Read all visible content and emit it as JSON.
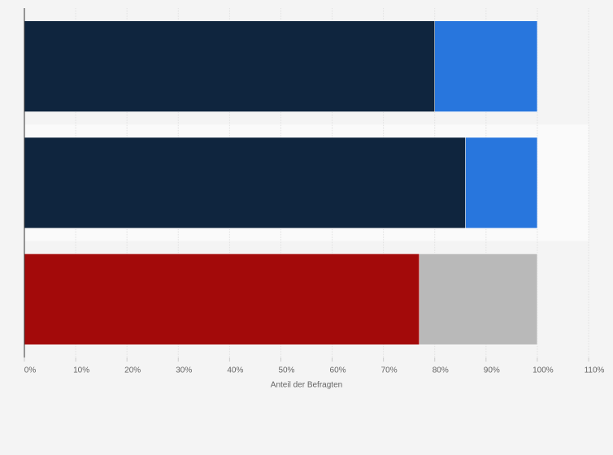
{
  "chart_data": {
    "type": "stacked-barh",
    "x_label": "Anteil der Befragten",
    "categories": [
      null,
      null,
      null
    ],
    "series": [
      {
        "colors": [
          "#0f253e",
          "#0f253e",
          "#a30a0a"
        ],
        "values": [
          80,
          86,
          77
        ]
      },
      {
        "colors": [
          "#2876dd",
          "#2876dd",
          "#b9b9b9"
        ],
        "values": [
          20,
          14,
          23
        ]
      }
    ],
    "xlim": [
      0,
      110
    ],
    "xticks": [
      {
        "value": 0,
        "label": "0%"
      },
      {
        "value": 10,
        "label": "10%"
      },
      {
        "value": 20,
        "label": "20%"
      },
      {
        "value": 30,
        "label": "30%"
      },
      {
        "value": 40,
        "label": "40%"
      },
      {
        "value": 50,
        "label": "50%"
      },
      {
        "value": 60,
        "label": "60%"
      },
      {
        "value": 70,
        "label": "70%"
      },
      {
        "value": 80,
        "label": "80%"
      },
      {
        "value": 90,
        "label": "90%"
      },
      {
        "value": 100,
        "label": "100%"
      },
      {
        "value": 110,
        "label": "110%"
      }
    ],
    "grid": true
  }
}
